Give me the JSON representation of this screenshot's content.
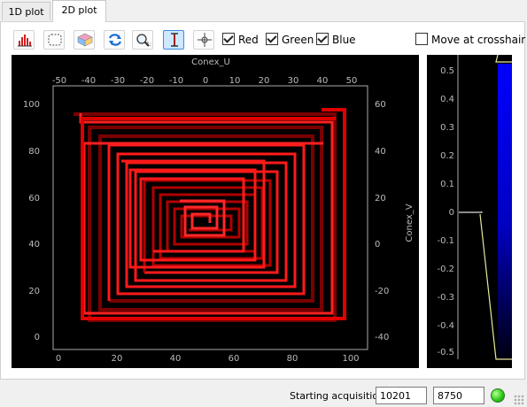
{
  "tabs": [
    {
      "label": "1D plot",
      "active": false
    },
    {
      "label": "2D plot",
      "active": true
    }
  ],
  "toolbar": {
    "buttons": [
      {
        "icon": "histogram-icon",
        "checked": false
      },
      {
        "icon": "roi-select-icon",
        "checked": false
      },
      {
        "icon": "colormap-icon",
        "checked": false
      },
      {
        "icon": "refresh-icon",
        "checked": false
      },
      {
        "icon": "zoom-fit-icon",
        "checked": false
      },
      {
        "icon": "vertical-cursor-icon",
        "checked": true
      },
      {
        "icon": "crosshair-icon",
        "checked": false
      }
    ],
    "checkboxes": [
      {
        "label": "Red",
        "checked": true
      },
      {
        "label": "Green",
        "checked": true
      },
      {
        "label": "Blue",
        "checked": true
      }
    ],
    "move_at_crosshair": {
      "label": "Move at crosshair",
      "checked": false
    }
  },
  "plot2d": {
    "top_axis_label": "Conex_U",
    "right_axis_label": "Conex_V",
    "bottom_ticks": [
      "0",
      "20",
      "40",
      "60",
      "80",
      "100"
    ],
    "left_ticks": [
      "100",
      "80",
      "60",
      "40",
      "20",
      "0"
    ],
    "top_ticks": [
      "-50",
      "-40",
      "-30",
      "-20",
      "-10",
      "0",
      "10",
      "20",
      "30",
      "40",
      "50"
    ],
    "right_ticks": [
      "60",
      "40",
      "20",
      "0",
      "-20",
      "-40"
    ],
    "trace_color": "#ff1a1a",
    "background": "#000000"
  },
  "side_plot": {
    "ticks": [
      "0.5",
      "0.4",
      "0.3",
      "0.2",
      "0.1",
      "0",
      "-0.1",
      "-0.2",
      "-0.3",
      "-0.4",
      "-0.5"
    ],
    "bar_color": "#0000ff"
  },
  "status": {
    "message": "Starting acquisition",
    "value1": "10201",
    "value2": "8750",
    "indicator_color": "#2ecc1a"
  }
}
